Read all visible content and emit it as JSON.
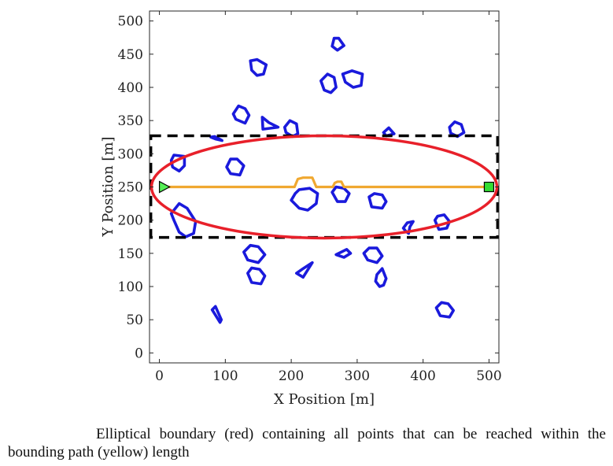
{
  "chart_data": {
    "type": "scatter",
    "title": "",
    "xlabel": "X Position [m]",
    "ylabel": "Y Position [m]",
    "xlim": [
      -15,
      515
    ],
    "ylim": [
      -15,
      515
    ],
    "xticks": [
      0,
      100,
      200,
      300,
      400,
      500
    ],
    "yticks": [
      0,
      50,
      100,
      150,
      200,
      250,
      300,
      350,
      400,
      450,
      500
    ],
    "grid": false,
    "colors": {
      "obstacle": "#1a1adc",
      "ellipse": "#e8202a",
      "path": "#f0a830",
      "bounding_box": "#000000",
      "start": "#55ee55",
      "goal": "#33dd33"
    },
    "start": {
      "name": "start",
      "marker": "triangle",
      "x": 0,
      "y": 250
    },
    "goal": {
      "name": "goal",
      "marker": "square",
      "x": 500,
      "y": 250
    },
    "ellipse": {
      "name": "elliptical boundary",
      "center": [
        250,
        250
      ],
      "semi_major": 262,
      "semi_minor": 77
    },
    "bounding_box": {
      "name": "bounding box",
      "x": [
        -13,
        513
      ],
      "y": [
        174,
        327
      ]
    },
    "path": {
      "name": "bounding path",
      "points": [
        [
          0,
          250
        ],
        [
          205,
          250
        ],
        [
          210,
          262
        ],
        [
          218,
          264
        ],
        [
          232,
          264
        ],
        [
          238,
          250
        ],
        [
          263,
          250
        ],
        [
          266,
          256
        ],
        [
          270,
          258
        ],
        [
          276,
          258
        ],
        [
          280,
          250
        ],
        [
          500,
          250
        ]
      ]
    },
    "obstacles": [
      [
        [
          265,
          474
        ],
        [
          272,
          474
        ],
        [
          280,
          463
        ],
        [
          270,
          456
        ],
        [
          262,
          462
        ]
      ],
      [
        [
          138,
          440
        ],
        [
          148,
          442
        ],
        [
          162,
          434
        ],
        [
          158,
          420
        ],
        [
          148,
          418
        ],
        [
          140,
          426
        ]
      ],
      [
        [
          245,
          410
        ],
        [
          255,
          420
        ],
        [
          265,
          415
        ],
        [
          268,
          400
        ],
        [
          260,
          392
        ],
        [
          250,
          396
        ]
      ],
      [
        [
          278,
          420
        ],
        [
          292,
          425
        ],
        [
          308,
          420
        ],
        [
          306,
          403
        ],
        [
          294,
          400
        ],
        [
          282,
          408
        ]
      ],
      [
        [
          112,
          360
        ],
        [
          120,
          372
        ],
        [
          130,
          368
        ],
        [
          136,
          358
        ],
        [
          130,
          346
        ],
        [
          116,
          352
        ]
      ],
      [
        [
          156,
          355
        ],
        [
          166,
          347
        ],
        [
          180,
          340
        ],
        [
          157,
          337
        ]
      ],
      [
        [
          190,
          340
        ],
        [
          198,
          350
        ],
        [
          208,
          345
        ],
        [
          210,
          330
        ],
        [
          202,
          326
        ],
        [
          192,
          332
        ]
      ],
      [
        [
          78,
          325
        ],
        [
          86,
          322
        ],
        [
          95,
          320
        ],
        [
          84,
          326
        ]
      ],
      [
        [
          440,
          340
        ],
        [
          448,
          348
        ],
        [
          458,
          344
        ],
        [
          462,
          332
        ],
        [
          452,
          326
        ],
        [
          442,
          331
        ]
      ],
      [
        [
          340,
          332
        ],
        [
          348,
          339
        ],
        [
          356,
          330
        ],
        [
          344,
          327
        ]
      ],
      [
        [
          18,
          290
        ],
        [
          22,
          298
        ],
        [
          38,
          296
        ],
        [
          38,
          282
        ],
        [
          30,
          274
        ],
        [
          20,
          280
        ]
      ],
      [
        [
          102,
          280
        ],
        [
          108,
          292
        ],
        [
          118,
          292
        ],
        [
          128,
          282
        ],
        [
          122,
          268
        ],
        [
          108,
          270
        ]
      ],
      [
        [
          200,
          230
        ],
        [
          212,
          218
        ],
        [
          225,
          215
        ],
        [
          238,
          225
        ],
        [
          240,
          240
        ],
        [
          228,
          248
        ],
        [
          212,
          246
        ],
        [
          206,
          240
        ]
      ],
      [
        [
          262,
          242
        ],
        [
          268,
          250
        ],
        [
          280,
          248
        ],
        [
          288,
          240
        ],
        [
          282,
          228
        ],
        [
          270,
          228
        ]
      ],
      [
        [
          318,
          235
        ],
        [
          326,
          240
        ],
        [
          338,
          238
        ],
        [
          344,
          228
        ],
        [
          338,
          218
        ],
        [
          322,
          220
        ]
      ],
      [
        [
          18,
          210
        ],
        [
          30,
          225
        ],
        [
          42,
          218
        ],
        [
          55,
          198
        ],
        [
          52,
          180
        ],
        [
          40,
          175
        ],
        [
          30,
          182
        ],
        [
          22,
          200
        ]
      ],
      [
        [
          370,
          188
        ],
        [
          376,
          196
        ],
        [
          385,
          198
        ],
        [
          380,
          190
        ],
        [
          378,
          180
        ],
        [
          374,
          183
        ]
      ],
      [
        [
          418,
          200
        ],
        [
          422,
          206
        ],
        [
          432,
          208
        ],
        [
          440,
          198
        ],
        [
          436,
          188
        ],
        [
          424,
          186
        ],
        [
          420,
          195
        ]
      ],
      [
        [
          128,
          152
        ],
        [
          138,
          162
        ],
        [
          150,
          160
        ],
        [
          160,
          148
        ],
        [
          150,
          136
        ],
        [
          134,
          140
        ]
      ],
      [
        [
          268,
          148
        ],
        [
          280,
          144
        ],
        [
          290,
          150
        ],
        [
          284,
          156
        ]
      ],
      [
        [
          310,
          150
        ],
        [
          318,
          158
        ],
        [
          330,
          158
        ],
        [
          338,
          146
        ],
        [
          330,
          136
        ],
        [
          316,
          140
        ]
      ],
      [
        [
          208,
          120
        ],
        [
          218,
          127
        ],
        [
          232,
          136
        ],
        [
          218,
          114
        ]
      ],
      [
        [
          134,
          120
        ],
        [
          140,
          128
        ],
        [
          152,
          126
        ],
        [
          160,
          116
        ],
        [
          154,
          104
        ],
        [
          140,
          106
        ]
      ],
      [
        [
          330,
          118
        ],
        [
          338,
          127
        ],
        [
          344,
          112
        ],
        [
          340,
          102
        ],
        [
          334,
          100
        ],
        [
          328,
          108
        ]
      ],
      [
        [
          80,
          65
        ],
        [
          85,
          70
        ],
        [
          94,
          50
        ],
        [
          92,
          46
        ]
      ],
      [
        [
          420,
          68
        ],
        [
          428,
          76
        ],
        [
          438,
          74
        ],
        [
          446,
          64
        ],
        [
          440,
          54
        ],
        [
          426,
          56
        ]
      ]
    ]
  },
  "caption": "Elliptical boundary (red) containing all points that can be reached within the bounding path (yellow) length"
}
